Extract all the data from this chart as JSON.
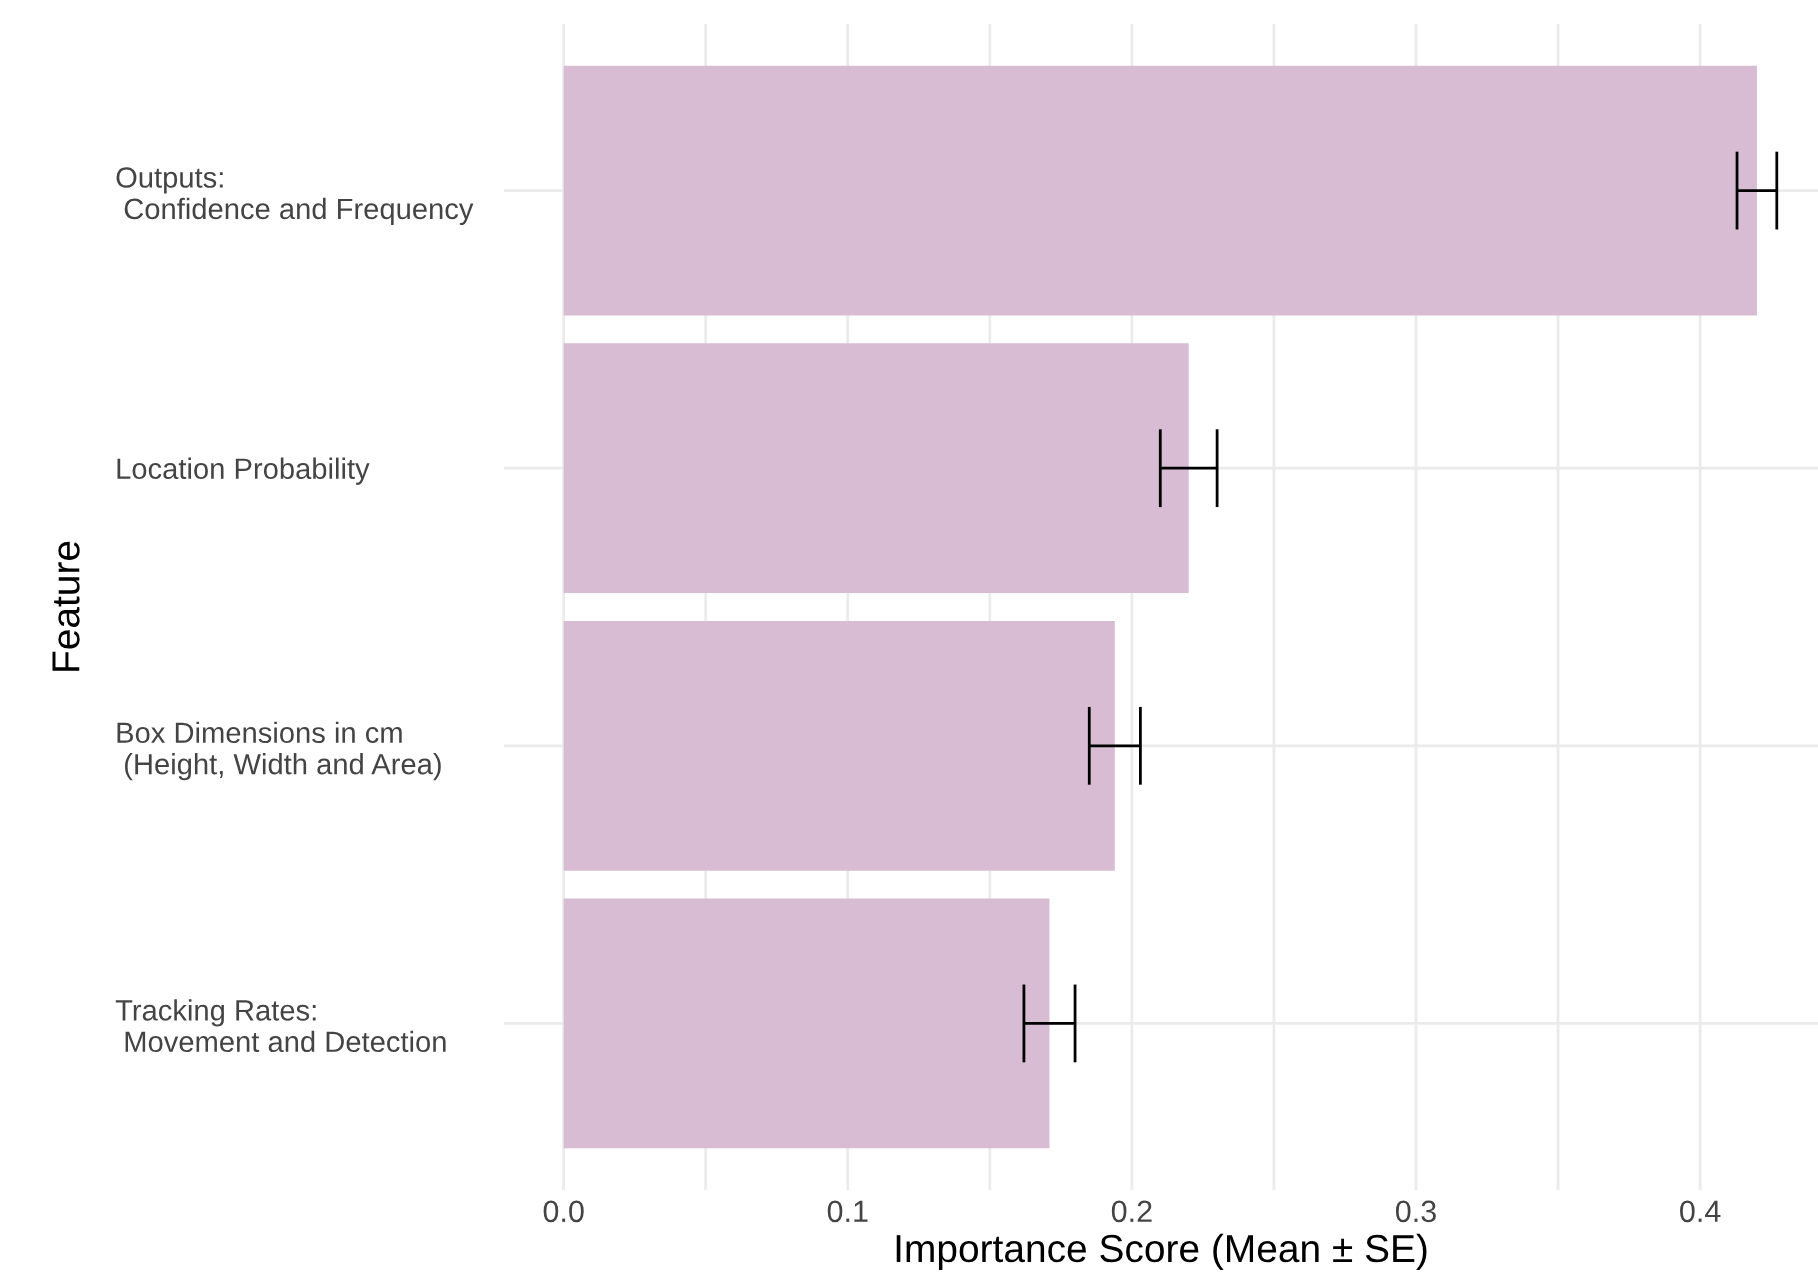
{
  "chart_data": {
    "type": "bar",
    "orientation": "horizontal",
    "xlabel": "Importance Score (Mean ± SE)",
    "ylabel": "Feature",
    "categories": [
      "Outputs:\n Confidence and Frequency",
      "Location Probability",
      "Box Dimensions in cm\n (Height, Width and Area)",
      "Tracking Rates:\n Movement and Detection"
    ],
    "values": [
      0.42,
      0.22,
      0.194,
      0.171
    ],
    "errors": [
      0.007,
      0.01,
      0.009,
      0.009
    ],
    "color": "#d8bcd4",
    "xlim": [
      -0.021,
      0.4415
    ],
    "xticks": [
      {
        "value": 0.0,
        "label": "0.0"
      },
      {
        "value": 0.05,
        "label": null
      },
      {
        "value": 0.1,
        "label": "0.1"
      },
      {
        "value": 0.15,
        "label": null
      },
      {
        "value": 0.2,
        "label": "0.2"
      },
      {
        "value": 0.25,
        "label": null
      },
      {
        "value": 0.3,
        "label": "0.3"
      },
      {
        "value": 0.35,
        "label": null
      },
      {
        "value": 0.4,
        "label": "0.4"
      }
    ],
    "grid": true
  }
}
